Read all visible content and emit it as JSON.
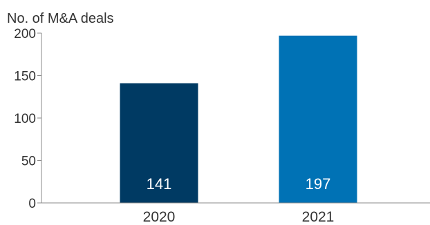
{
  "chart_data": {
    "type": "bar",
    "title": "",
    "ylabel": "No. of M&A deals",
    "xlabel": "",
    "categories": [
      "2020",
      "2021"
    ],
    "values": [
      141,
      197
    ],
    "data_labels": [
      "141",
      "197"
    ],
    "bar_colors": [
      "#003a63",
      "#0072b5"
    ],
    "data_label_color": "#ffffff",
    "axis_color": "#8a8a8a",
    "text_color": "#333333",
    "ylim": [
      0,
      200
    ],
    "yticks": [
      0,
      50,
      100,
      150,
      200
    ],
    "ytick_labels": [
      "0",
      "50",
      "100",
      "150",
      "200"
    ],
    "grid": false,
    "legend": "none"
  }
}
